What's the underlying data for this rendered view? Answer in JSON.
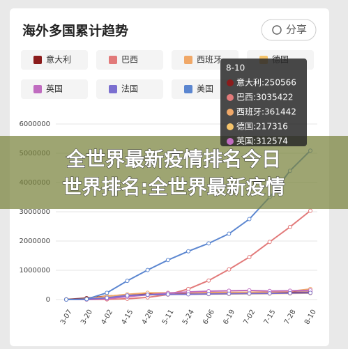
{
  "title": "海外多国累计趋势",
  "share": "分享",
  "banner": [
    "全世界最新疫情排名今日",
    "世界排名:全世界最新疫情"
  ],
  "tooltip": {
    "items": [
      "意大利:250566",
      "巴西:3035422",
      "西班牙:361442",
      "德国:217316",
      "英国:312574"
    ]
  },
  "chart_data": {
    "type": "line",
    "categories": [
      "3-07",
      "3-20",
      "4-02",
      "4-15",
      "4-28",
      "5-11",
      "5-24",
      "6-06",
      "6-19",
      "7-02",
      "7-15",
      "7-28",
      "8-10"
    ],
    "ylim": [
      0,
      6000000
    ],
    "yticks": [
      0,
      1000000,
      2000000,
      3000000,
      4000000,
      5000000,
      6000000
    ],
    "grid": true,
    "series": [
      {
        "name": "意大利",
        "color": "#8b1c1c",
        "values": [
          5883,
          47021,
          115242,
          165155,
          201505,
          219814,
          229858,
          234531,
          238011,
          240760,
          243506,
          246286,
          250566
        ]
      },
      {
        "name": "巴西",
        "color": "#e27a7a",
        "values": [
          0,
          0,
          7000,
          28000,
          73000,
          170000,
          360000,
          650000,
          1030000,
          1450000,
          1970000,
          2480000,
          3035422
        ]
      },
      {
        "name": "西班牙",
        "color": "#f0a868",
        "values": [
          500,
          20000,
          110000,
          180000,
          230000,
          230000,
          235000,
          240000,
          245000,
          250000,
          258000,
          280000,
          361442
        ]
      },
      {
        "name": "德国",
        "color": "#f5c46b",
        "values": [
          800,
          15000,
          80000,
          130000,
          160000,
          172000,
          180000,
          184000,
          190000,
          196000,
          201000,
          207000,
          217316
        ]
      },
      {
        "name": "英国",
        "color": "#c06cc0",
        "values": [
          200,
          4000,
          34000,
          98000,
          160000,
          220000,
          260000,
          285000,
          302000,
          313000,
          291000,
          301000,
          312574
        ]
      },
      {
        "name": "法国",
        "color": "#7b6fd0",
        "values": [
          1000,
          12000,
          60000,
          140000,
          165000,
          175000,
          180000,
          190000,
          200000,
          205000,
          210000,
          220000,
          230000
        ]
      },
      {
        "name": "美国",
        "color": "#5b86d0",
        "values": [
          0,
          15000,
          230000,
          640000,
          1010000,
          1350000,
          1650000,
          1920000,
          2250000,
          2750000,
          3500000,
          4400000,
          5090000
        ]
      }
    ]
  }
}
